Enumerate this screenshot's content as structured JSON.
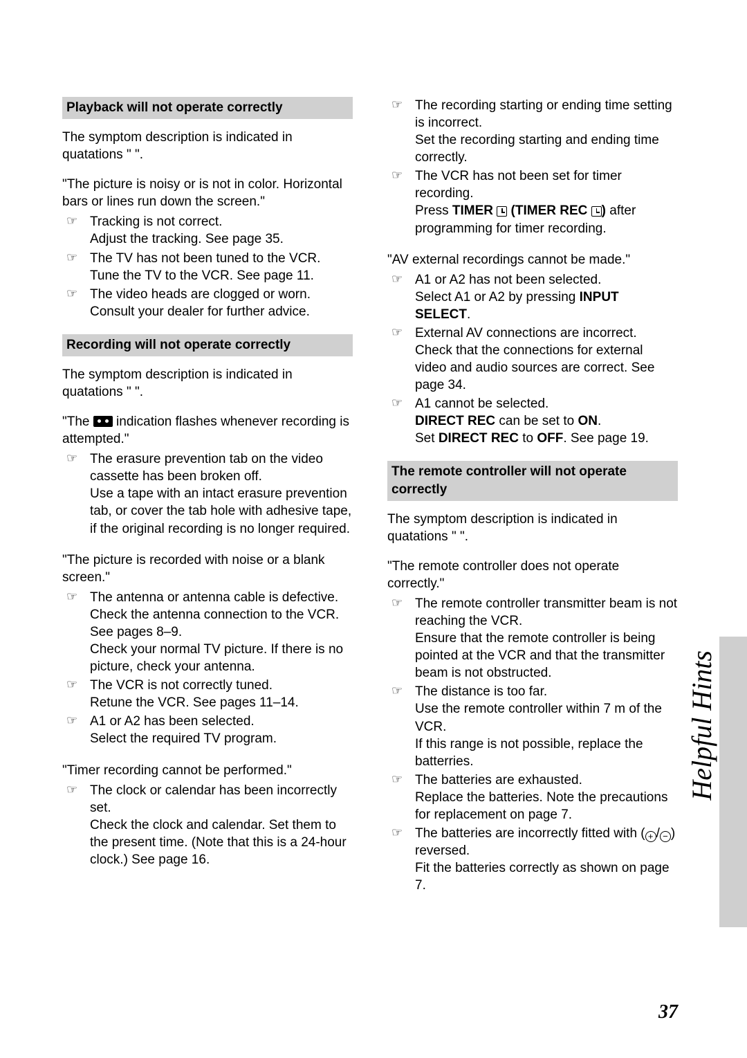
{
  "side_label": "Helpful Hints",
  "page_number": "37",
  "left": {
    "h1": "Playback will not operate correctly",
    "intro1": "The symptom description is indicated in quatations \"   \".",
    "sym1": "\"The picture is noisy or is not in color. Horizontal bars or lines run down the screen.\"",
    "b1a_1": "Tracking is not correct.",
    "b1a_2": "Adjust the tracking. See page 35.",
    "b1b_1": "The TV has not been tuned to the VCR.",
    "b1b_2": "Tune the TV to the VCR. See page 11.",
    "b1c_1": "The video heads are clogged or worn.",
    "b1c_2": "Consult your dealer for further advice.",
    "h2": "Recording will not operate correctly",
    "intro2": "The symptom description is indicated in quatations \"   \".",
    "sym2a": "\"The ",
    "sym2b": " indication flashes whenever recording is attempted.\"",
    "b2a_1": "The erasure prevention tab on the video cassette has been broken off.",
    "b2a_2": "Use a tape with an intact erasure prevention tab, or cover the tab hole with adhesive tape, if the original recording is no longer required.",
    "sym3": "\"The picture is recorded with noise or a blank screen.\"",
    "b3a_1": "The antenna or antenna cable is defective.",
    "b3a_2": "Check the antenna connection to the VCR. See pages 8–9.",
    "b3a_3": "Check your normal TV picture. If there is no picture, check your antenna.",
    "b3b_1": "The VCR is not correctly tuned.",
    "b3b_2": "Retune the VCR. See pages 11–14.",
    "b3c_1": "A1 or A2 has been selected.",
    "b3c_2": "Select the required TV program.",
    "sym4": "\"Timer recording cannot be performed.\"",
    "b4a_1": "The clock or calendar has been incorrectly set.",
    "b4a_2": "Check the clock and calendar. Set them to the present time. (Note that this is a 24-hour clock.) See page 16."
  },
  "right": {
    "b5a_1": "The recording starting or ending time setting is incorrect.",
    "b5a_2": "Set the recording starting and ending time correctly.",
    "b5b_1": "The VCR has not been set for timer recording.",
    "b5b_2a": "Press ",
    "b5b_timer": "TIMER",
    "b5b_mid": " (",
    "b5b_timerrec": "TIMER REC",
    "b5b_close": ")",
    "b5b_2b": " after programming for timer recording.",
    "sym6": "\"AV external recordings cannot be made.\"",
    "b6a_1": "A1 or A2 has not been selected.",
    "b6a_2a": "Select A1 or A2 by pressing ",
    "b6a_input": "INPUT SELECT",
    "b6a_2b": ".",
    "b6b_1": "External AV connections are incorrect.",
    "b6b_2": "Check that the connections for external video and audio sources are correct. See page 34.",
    "b6c_1": "A1 cannot be selected.",
    "b6c_direct": "DIRECT REC",
    "b6c_2a": " can be set to ",
    "b6c_on": "ON",
    "b6c_2b": ".",
    "b6c_3a": "Set ",
    "b6c_3b": " to ",
    "b6c_off": "OFF",
    "b6c_3c": ". See page 19.",
    "h3": "The remote controller will not operate correctly",
    "intro3": "The symptom description is indicated in quatations \"   \".",
    "sym7": "\"The remote controller does not operate correctly.\"",
    "b7a_1": "The remote controller transmitter beam is not reaching the VCR.",
    "b7a_2": "Ensure that the remote controller is being pointed at the VCR and that the transmitter beam is not obstructed.",
    "b7b_1": "The distance is too far.",
    "b7b_2": "Use the remote controller within 7 m of the VCR.",
    "b7b_3": "If this range is not possible, replace the batterries.",
    "b7c_1": "The batteries are exhausted.",
    "b7c_2": "Replace the batteries. Note the precautions for replacement on page 7.",
    "b7d_1a": "The batteries are incorrectly fitted with (",
    "b7d_1b": "/",
    "b7d_1c": ") reversed.",
    "b7d_2": "Fit the batteries correctly as shown on page 7."
  }
}
